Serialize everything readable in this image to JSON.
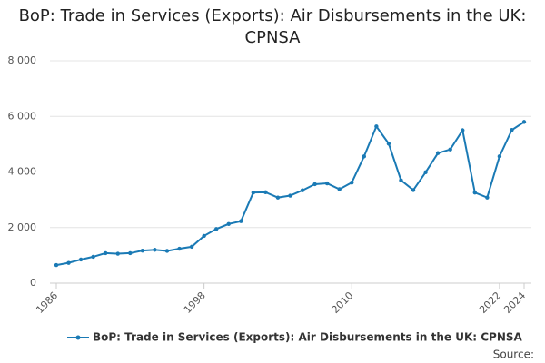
{
  "chart_data": {
    "type": "line",
    "title": "BoP: Trade in Services (Exports): Air Disbursements in the UK: CPNSA",
    "x": [
      1986,
      1987,
      1988,
      1989,
      1990,
      1991,
      1992,
      1993,
      1994,
      1995,
      1996,
      1997,
      1998,
      1999,
      2000,
      2001,
      2002,
      2003,
      2004,
      2005,
      2006,
      2007,
      2008,
      2009,
      2010,
      2011,
      2012,
      2013,
      2014,
      2015,
      2016,
      2017,
      2018,
      2019,
      2020,
      2021,
      2022,
      2023,
      2024
    ],
    "series": [
      {
        "name": "BoP: Trade in Services (Exports): Air Disbursements in the UK: CPNSA",
        "color": "#1a7ab5",
        "values": [
          650,
          730,
          850,
          950,
          1080,
          1060,
          1080,
          1170,
          1200,
          1160,
          1240,
          1310,
          1700,
          1950,
          2130,
          2230,
          3260,
          3270,
          3080,
          3150,
          3340,
          3560,
          3590,
          3380,
          3620,
          4560,
          5640,
          5020,
          3700,
          3350,
          3990,
          4680,
          4810,
          5500,
          3260,
          3080,
          4560,
          5510,
          5800
        ]
      }
    ],
    "xlim": [
      1986,
      2024
    ],
    "xticks": [
      1986,
      1998,
      2010,
      2022,
      2024
    ],
    "ylim": [
      0,
      8000
    ],
    "yticks": [
      0,
      {
        "value": 2000,
        "label": "2 000"
      },
      {
        "value": 4000,
        "label": "4 000"
      },
      {
        "value": 6000,
        "label": "6 000"
      },
      {
        "value": 8000,
        "label": "8 000"
      }
    ],
    "grid": true,
    "source_label": "Source:"
  }
}
